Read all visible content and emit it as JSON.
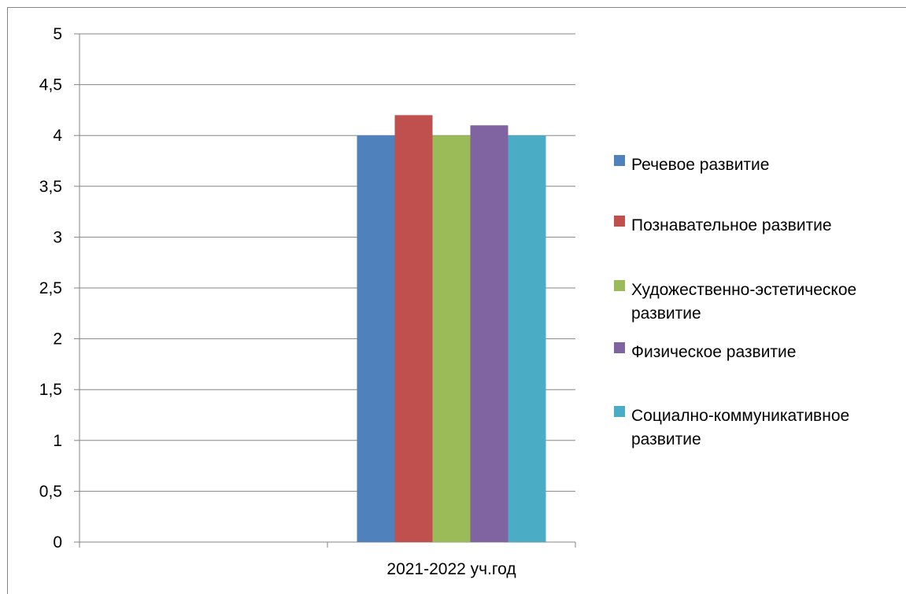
{
  "chart_data": {
    "type": "bar",
    "categories": [
      "",
      "2021-2022 уч.год"
    ],
    "series": [
      {
        "name": "Речевое развитие",
        "color": "#4f81bd",
        "values": [
          null,
          4.0
        ]
      },
      {
        "name": "Познавательное развитие",
        "color": "#c0504d",
        "values": [
          null,
          4.2
        ]
      },
      {
        "name": "Художественно-эстетическое развитие",
        "color": "#9bbb59",
        "values": [
          null,
          4.0
        ]
      },
      {
        "name": "Физическое развитие",
        "color": "#8064a2",
        "values": [
          null,
          4.1
        ]
      },
      {
        "name": "Социално-коммуникативное развитие",
        "color": "#4bacc6",
        "values": [
          null,
          4.0
        ]
      }
    ],
    "ylim": [
      0,
      5
    ],
    "yticks": [
      "0",
      "0,5",
      "1",
      "1,5",
      "2",
      "2,5",
      "3",
      "3,5",
      "4",
      "4,5",
      "5"
    ],
    "ytick_values": [
      0,
      0.5,
      1,
      1.5,
      2,
      2.5,
      3,
      3.5,
      4,
      4.5,
      5
    ],
    "grid": true,
    "legend_position": "right",
    "title": "",
    "xlabel": "",
    "ylabel": ""
  },
  "legend_lines": [
    [
      "Речевое развитие"
    ],
    [
      "Познавательное развитие"
    ],
    [
      "Художественно-эстетическое",
      "развитие"
    ],
    [
      "Физическое развитие"
    ],
    [
      "Социално-коммуникативное",
      "развитие"
    ]
  ]
}
